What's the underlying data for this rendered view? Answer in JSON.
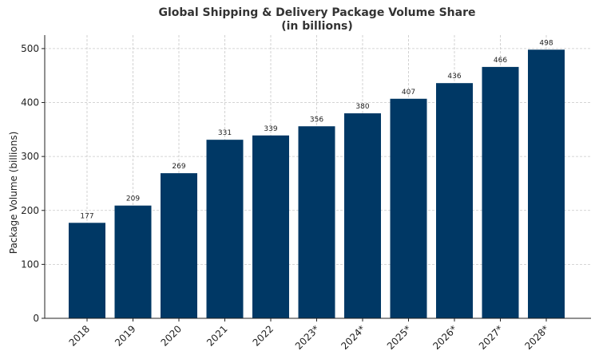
{
  "chart_data": {
    "type": "bar",
    "title": "Global Shipping & Delivery Package Volume Share",
    "subtitle": "(in billions)",
    "xlabel": "",
    "ylabel": "Package Volume (billions)",
    "categories": [
      "2018",
      "2019",
      "2020",
      "2021",
      "2022",
      "2023*",
      "2024*",
      "2025*",
      "2026*",
      "2027*",
      "2028*"
    ],
    "values": [
      177,
      209,
      269,
      331,
      339,
      356,
      380,
      407,
      436,
      466,
      498
    ],
    "data_labels": [
      "177",
      "209",
      "269",
      "331",
      "339",
      "356",
      "380",
      "407",
      "436",
      "466",
      "498"
    ],
    "ylim": [
      0,
      525
    ],
    "yticks": [
      0,
      100,
      200,
      300,
      400,
      500
    ],
    "ytick_labels": [
      "0",
      "100",
      "200",
      "300",
      "400",
      "500"
    ],
    "grid": true,
    "bar_color": "#003865"
  }
}
